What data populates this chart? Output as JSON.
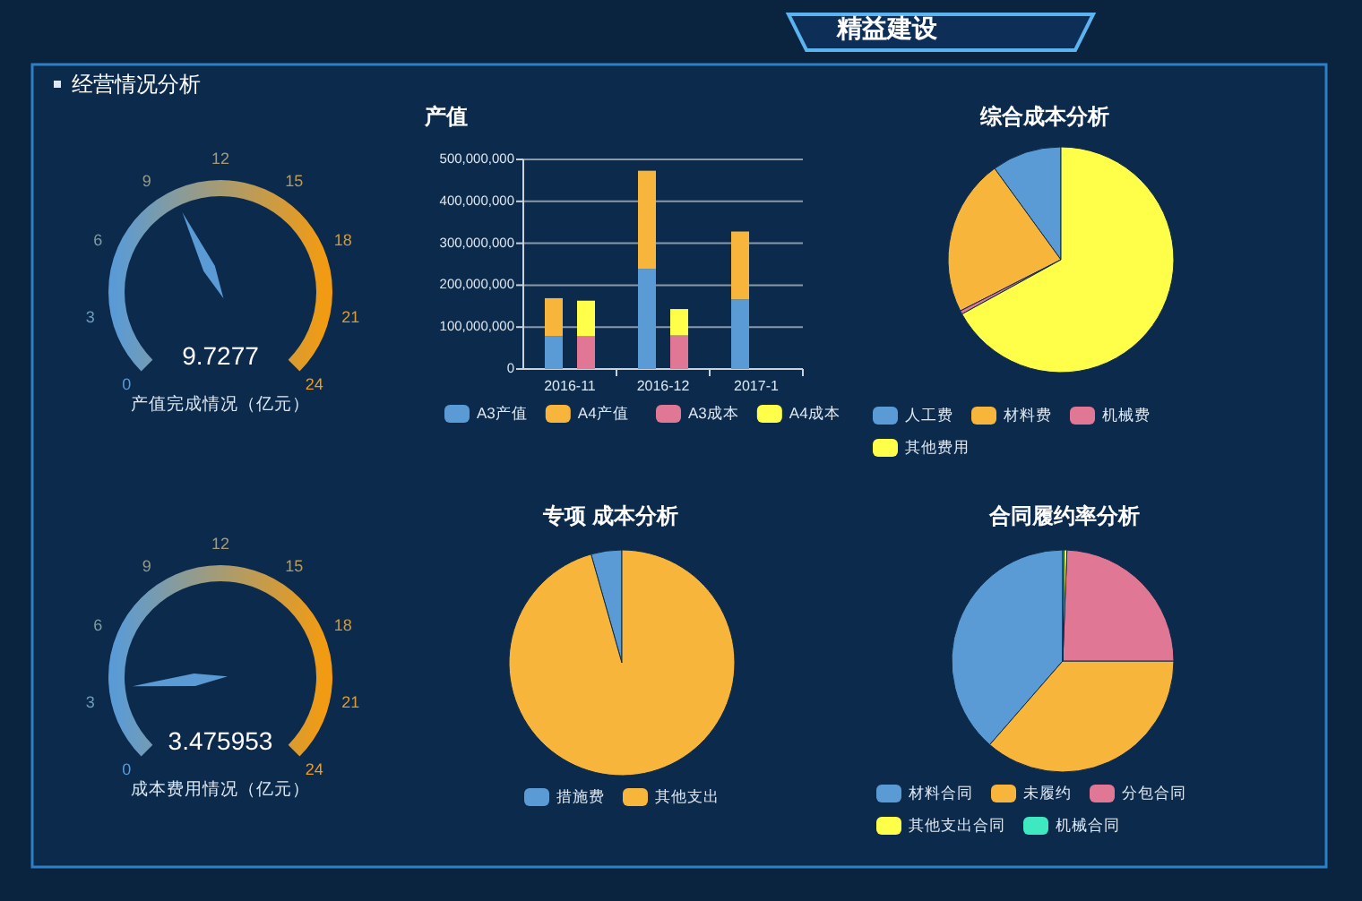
{
  "chart_data": [
    {
      "type": "other",
      "title": "精益建设",
      "subtitle": "经营情况分析"
    },
    {
      "type": "other",
      "title": "产值完成情况（亿元）",
      "values": [
        9.7277
      ],
      "data_labels": true,
      "annotations": [
        "0",
        "3",
        "6",
        "9",
        "12",
        "15",
        "18",
        "21",
        "24"
      ],
      "color": "#5b9bd5"
    },
    {
      "type": "bar",
      "title": "产值",
      "stacked": true,
      "categories": [
        "2016-11",
        "2016-12",
        "2017-1"
      ],
      "grid": "y",
      "legend": "bottom",
      "ylim": [
        0,
        500000000
      ],
      "yticks": [
        0,
        {
          "value": 100000000,
          "label": "100,000,000"
        },
        {
          "value": 200000000,
          "label": "200,000,000"
        },
        {
          "value": 300000000,
          "label": "300,000,000"
        },
        {
          "value": 400000000,
          "label": "400,000,000"
        },
        {
          "value": 500000000,
          "label": "500,000,000"
        }
      ],
      "series": [
        {
          "name": "A3产值",
          "color": "#5b9bd5",
          "values": [
            78000000,
            239000000,
            166000000
          ]
        },
        {
          "name": "A4产值",
          "color": "#f7b53b",
          "values": [
            91000000,
            234000000,
            162000000
          ]
        }
      ]
    },
    {
      "type": "bar",
      "stacked": true,
      "categories": [
        "2016-11",
        "2016-12",
        "2017-1"
      ],
      "legend": "bottom",
      "tick_labels": false,
      "ylim": [
        0,
        500000000
      ],
      "series": [
        {
          "name": "A3成本",
          "color": "#e07794",
          "values": [
            78000000,
            80000000,
            null
          ]
        },
        {
          "name": "A4成本",
          "color": "#ffff4a",
          "values": [
            85000000,
            63000000,
            null
          ]
        }
      ]
    },
    {
      "type": "pie",
      "title": "综合成本分析",
      "legend": "bottom",
      "categories": [
        "人工费",
        "材料费",
        "机械费",
        "其他费用"
      ],
      "values": [
        10,
        22.5,
        0.5,
        67
      ],
      "colors": [
        "#5b9bd5",
        "#f7b53b",
        "#e07794",
        "#ffff4a"
      ]
    },
    {
      "type": "other",
      "title": "成本费用情况（亿元）",
      "values": [
        3.475953
      ],
      "data_labels": true,
      "annotations": [
        "0",
        "3",
        "6",
        "9",
        "12",
        "15",
        "18",
        "21",
        "24"
      ],
      "color": "#5b9bd5"
    },
    {
      "type": "pie",
      "title": "专项 成本分析",
      "legend": "bottom",
      "categories": [
        "措施费",
        "其他支出"
      ],
      "values": [
        4.4,
        95.6
      ],
      "colors": [
        "#5b9bd5",
        "#f7b53b"
      ]
    },
    {
      "type": "pie",
      "title": "合同履约率分析",
      "legend": "bottom",
      "categories": [
        "材料合同",
        "未履约",
        "分包合同",
        "其他支出合同",
        "机械合同"
      ],
      "values": [
        38.6,
        36.4,
        24.4,
        0.4,
        0.2
      ],
      "colors": [
        "#5b9bd5",
        "#f7b53b",
        "#e07794",
        "#ffff4a",
        "#3ee8c0"
      ]
    }
  ]
}
